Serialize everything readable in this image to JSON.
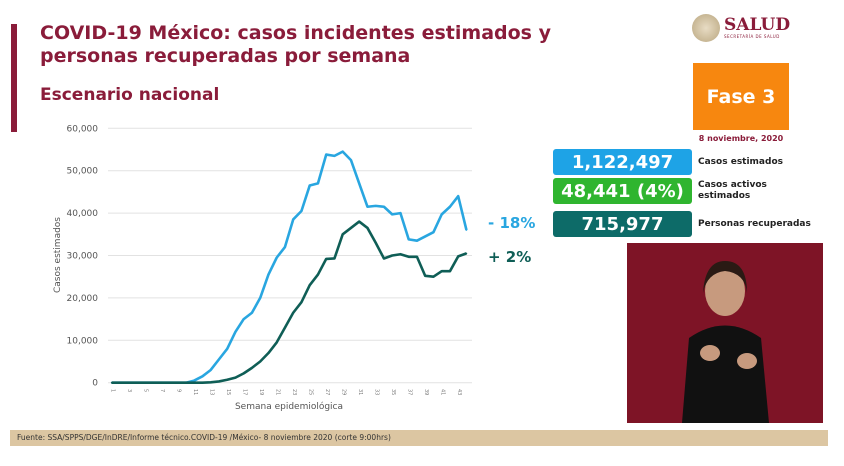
{
  "header": {
    "title": "COVID-19 México: casos incidentes estimados y personas recuperadas por semana",
    "subtitle": "Escenario nacional"
  },
  "logo": {
    "name": "SALUD",
    "tagline": "SECRETARÍA DE SALUD"
  },
  "phase": {
    "label": "Fase 3",
    "color": "#f7870f"
  },
  "date": "8 noviembre, 2020",
  "stats": [
    {
      "value": "1,122,497",
      "label": "Casos estimados",
      "color": "#1ea3e6"
    },
    {
      "value": "48,441 (4%)",
      "label": "Casos activos estimados",
      "color": "#2fb52f"
    },
    {
      "value": "715,977",
      "label": "Personas recuperadas",
      "color": "#0d6b68"
    }
  ],
  "chart_data": {
    "type": "line",
    "xlabel": "Semana epidemiológica",
    "ylabel": "Casos estimados",
    "ylim": [
      0,
      60000
    ],
    "yticks": [
      "0",
      "10,000",
      "20,000",
      "30,000",
      "40,000",
      "50,000",
      "60,000"
    ],
    "xticks": [
      "1",
      "3",
      "5",
      "7",
      "9",
      "11",
      "13",
      "15",
      "17",
      "19",
      "21",
      "23",
      "25",
      "27",
      "29",
      "31",
      "33",
      "35",
      "37",
      "39",
      "41",
      "43"
    ],
    "x": [
      1,
      2,
      3,
      4,
      5,
      6,
      7,
      8,
      9,
      10,
      11,
      12,
      13,
      14,
      15,
      16,
      17,
      18,
      19,
      20,
      21,
      22,
      23,
      24,
      25,
      26,
      27,
      28,
      29,
      30,
      31,
      32,
      33,
      34,
      35,
      36,
      37,
      38,
      39,
      40,
      41,
      42,
      43,
      44
    ],
    "grid": true,
    "series": [
      {
        "color": "#29a6e0",
        "end_label": "- 18%",
        "values": [
          0,
          0,
          0,
          0,
          0,
          0,
          0,
          0,
          0,
          0,
          500,
          1500,
          3000,
          5500,
          8000,
          12000,
          15000,
          16500,
          20000,
          25500,
          29500,
          32000,
          38500,
          40500,
          46500,
          47000,
          53800,
          53500,
          54500,
          52500,
          47000,
          41500,
          41700,
          41500,
          39700,
          40000,
          33800,
          33500,
          34500,
          35500,
          39700,
          41500,
          44000,
          36000
        ]
      },
      {
        "color": "#0f5e56",
        "end_label": "+ 2%",
        "values": [
          0,
          0,
          0,
          0,
          0,
          0,
          0,
          0,
          0,
          0,
          0,
          0,
          100,
          300,
          700,
          1200,
          2200,
          3500,
          5000,
          7000,
          9500,
          13000,
          16500,
          19000,
          23000,
          25500,
          29200,
          29300,
          35000,
          36500,
          38000,
          36500,
          33000,
          29300,
          30000,
          30300,
          29700,
          29700,
          25200,
          25000,
          26300,
          26300,
          29800,
          30500
        ]
      }
    ]
  },
  "footer": "Fuente: SSA/SPPS/DGE/InDRE/Informe técnico.COVID-19 /México- 8 noviembre 2020 (corte 9:00hrs)"
}
